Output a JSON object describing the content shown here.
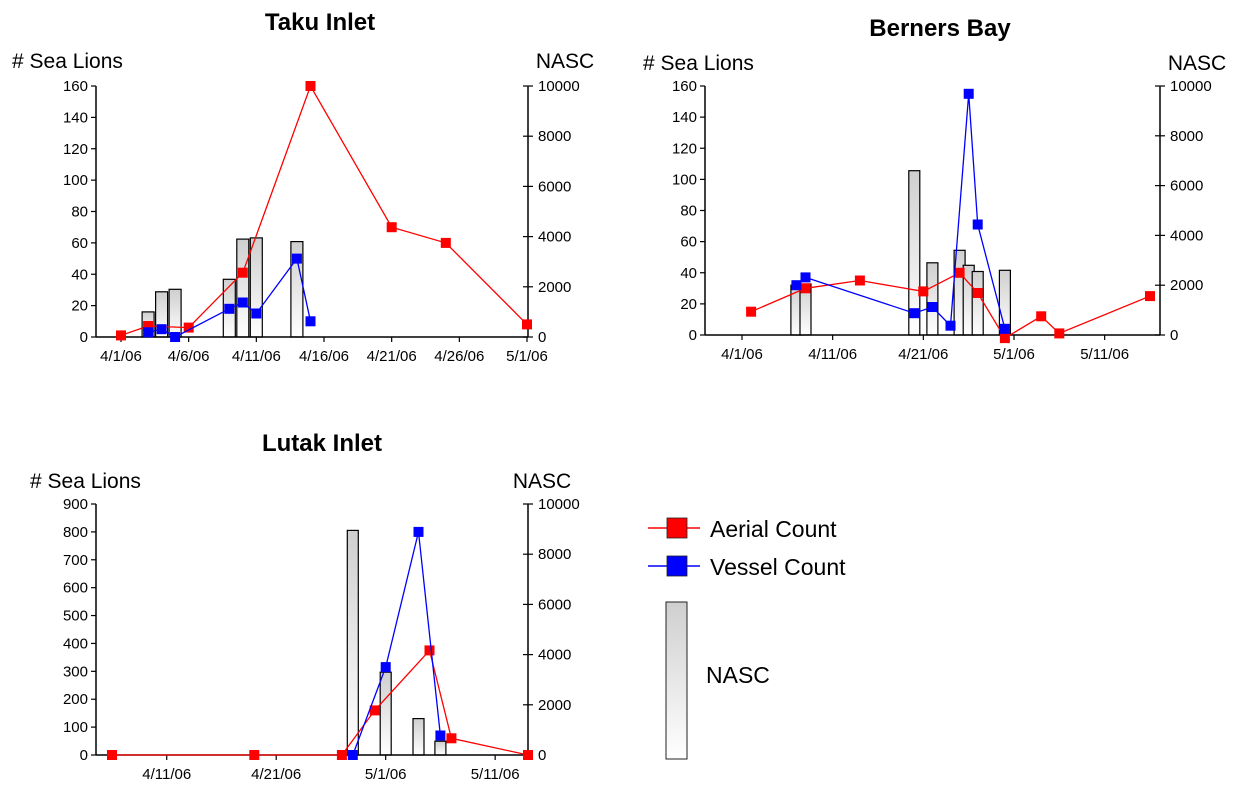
{
  "colors": {
    "aerial": "#ff0000",
    "vessel": "#0000ff",
    "nasc_fill_top": "#cfcfcf",
    "nasc_fill_bottom": "#ffffff"
  },
  "legend": {
    "aerial_label": "Aerial Count",
    "vessel_label": "Vessel Count",
    "nasc_label": "NASC"
  },
  "chart_data": [
    {
      "type": "bar+line",
      "title": "Taku Inlet",
      "ylabel_left": "# Sea Lions",
      "ylabel_right": "NASC",
      "x_is_date": true,
      "xlim": [
        "2006-04-01",
        "2006-05-01"
      ],
      "x_ticks": [
        "4/1/06",
        "4/6/06",
        "4/11/06",
        "4/16/06",
        "4/21/06",
        "4/26/06",
        "5/1/06"
      ],
      "x_tick_dates": [
        "2006-04-01",
        "2006-04-06",
        "2006-04-11",
        "2006-04-16",
        "2006-04-21",
        "2006-04-26",
        "2006-05-01"
      ],
      "ylim_left": [
        0,
        160
      ],
      "y_ticks_left": [
        "0",
        "20",
        "40",
        "60",
        "80",
        "100",
        "120",
        "140",
        "160"
      ],
      "ylim_right": [
        0,
        10000
      ],
      "y_ticks_right": [
        "0",
        "2000",
        "4000",
        "6000",
        "8000",
        "10000"
      ],
      "nasc_bars": [
        {
          "date": "2006-04-03",
          "value": 1000
        },
        {
          "date": "2006-04-04",
          "value": 1800
        },
        {
          "date": "2006-04-05",
          "value": 1900
        },
        {
          "date": "2006-04-09",
          "value": 2300
        },
        {
          "date": "2006-04-10",
          "value": 3900
        },
        {
          "date": "2006-04-11",
          "value": 3950
        },
        {
          "date": "2006-04-14",
          "value": 3800
        }
      ],
      "aerial": [
        {
          "date": "2006-04-01",
          "value": 1
        },
        {
          "date": "2006-04-03",
          "value": 7
        },
        {
          "date": "2006-04-06",
          "value": 6
        },
        {
          "date": "2006-04-10",
          "value": 41
        },
        {
          "date": "2006-04-15",
          "value": 160
        },
        {
          "date": "2006-04-21",
          "value": 70
        },
        {
          "date": "2006-04-25",
          "value": 60
        },
        {
          "date": "2006-05-01",
          "value": 8
        }
      ],
      "vessel": [
        {
          "date": "2006-04-03",
          "value": 3
        },
        {
          "date": "2006-04-04",
          "value": 5
        },
        {
          "date": "2006-04-05",
          "value": 0
        },
        {
          "date": "2006-04-09",
          "value": 18
        },
        {
          "date": "2006-04-10",
          "value": 22
        },
        {
          "date": "2006-04-11",
          "value": 15
        },
        {
          "date": "2006-04-14",
          "value": 50
        },
        {
          "date": "2006-04-15",
          "value": 10
        }
      ]
    },
    {
      "type": "bar+line",
      "title": "Berners Bay",
      "ylabel_left": "# Sea Lions",
      "ylabel_right": "NASC",
      "x_is_date": true,
      "xlim": [
        "2006-04-01",
        "2006-05-16"
      ],
      "x_ticks": [
        "4/1/06",
        "4/11/06",
        "4/21/06",
        "5/1/06",
        "5/11/06"
      ],
      "x_tick_dates": [
        "2006-04-01",
        "2006-04-11",
        "2006-04-21",
        "2006-05-01",
        "2006-05-11"
      ],
      "ylim_left": [
        0,
        160
      ],
      "y_ticks_left": [
        "0",
        "20",
        "40",
        "60",
        "80",
        "100",
        "120",
        "140",
        "160"
      ],
      "ylim_right": [
        0,
        10000
      ],
      "y_ticks_right": [
        "0",
        "2000",
        "4000",
        "6000",
        "8000",
        "10000"
      ],
      "nasc_bars": [
        {
          "date": "2006-04-07",
          "value": 2000
        },
        {
          "date": "2006-04-08",
          "value": 2050
        },
        {
          "date": "2006-04-20",
          "value": 6600
        },
        {
          "date": "2006-04-22",
          "value": 2900
        },
        {
          "date": "2006-04-25",
          "value": 3400
        },
        {
          "date": "2006-04-26",
          "value": 2800
        },
        {
          "date": "2006-04-27",
          "value": 2550
        },
        {
          "date": "2006-04-30",
          "value": 2600
        }
      ],
      "aerial": [
        {
          "date": "2006-04-02",
          "value": 15
        },
        {
          "date": "2006-04-08",
          "value": 30
        },
        {
          "date": "2006-04-14",
          "value": 35
        },
        {
          "date": "2006-04-21",
          "value": 28
        },
        {
          "date": "2006-04-25",
          "value": 40
        },
        {
          "date": "2006-04-27",
          "value": 27
        },
        {
          "date": "2006-04-30",
          "value": -2
        },
        {
          "date": "2006-05-04",
          "value": 12
        },
        {
          "date": "2006-05-06",
          "value": 1
        },
        {
          "date": "2006-05-16",
          "value": 25
        }
      ],
      "vessel": [
        {
          "date": "2006-04-07",
          "value": 32
        },
        {
          "date": "2006-04-08",
          "value": 37
        },
        {
          "date": "2006-04-20",
          "value": 14
        },
        {
          "date": "2006-04-22",
          "value": 18
        },
        {
          "date": "2006-04-24",
          "value": 6
        },
        {
          "date": "2006-04-26",
          "value": 155
        },
        {
          "date": "2006-04-27",
          "value": 71
        },
        {
          "date": "2006-04-30",
          "value": 4
        }
      ]
    },
    {
      "type": "bar+line",
      "title": "Lutak Inlet",
      "ylabel_left": "# Sea Lions",
      "ylabel_right": "NASC",
      "x_is_date": true,
      "xlim": [
        "2006-04-06",
        "2006-05-14"
      ],
      "x_ticks": [
        "4/11/06",
        "4/21/06",
        "5/1/06",
        "5/11/06"
      ],
      "x_tick_dates": [
        "2006-04-11",
        "2006-04-21",
        "2006-05-01",
        "2006-05-11"
      ],
      "ylim_left": [
        0,
        900
      ],
      "y_ticks_left": [
        "0",
        "100",
        "200",
        "300",
        "400",
        "500",
        "600",
        "700",
        "800",
        "900"
      ],
      "ylim_right": [
        0,
        10000
      ],
      "y_ticks_right": [
        "0",
        "2000",
        "4000",
        "6000",
        "8000",
        "10000"
      ],
      "nasc_bars": [
        {
          "date": "2006-04-28",
          "value": 8950
        },
        {
          "date": "2006-05-01",
          "value": 3300
        },
        {
          "date": "2006-05-04",
          "value": 1450
        },
        {
          "date": "2006-05-06",
          "value": 550
        }
      ],
      "aerial": [
        {
          "date": "2006-04-06",
          "value": 0
        },
        {
          "date": "2006-04-19",
          "value": 0
        },
        {
          "date": "2006-04-27",
          "value": 0
        },
        {
          "date": "2006-04-30",
          "value": 160
        },
        {
          "date": "2006-05-05",
          "value": 375
        },
        {
          "date": "2006-05-07",
          "value": 60
        },
        {
          "date": "2006-05-14",
          "value": 0
        }
      ],
      "vessel": [
        {
          "date": "2006-04-28",
          "value": 0
        },
        {
          "date": "2006-05-01",
          "value": 315
        },
        {
          "date": "2006-05-04",
          "value": 800
        },
        {
          "date": "2006-05-06",
          "value": 70
        }
      ]
    }
  ]
}
